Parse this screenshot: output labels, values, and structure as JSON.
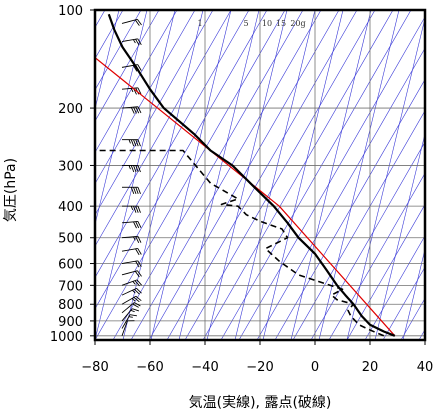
{
  "chart_data": {
    "type": "line",
    "xlabel": "気温(実線), 露点(破線)",
    "ylabel": "気圧(hPa)",
    "xlim": [
      -80,
      40
    ],
    "ylim": [
      1030,
      100
    ],
    "y_scale": "log",
    "x_ticks": [
      -80,
      -60,
      -40,
      -20,
      0,
      20,
      40
    ],
    "x_tick_labels": [
      "−80",
      "−60",
      "−40",
      "−20",
      "0",
      "20",
      "40"
    ],
    "y_ticks": [
      100,
      200,
      300,
      400,
      500,
      600,
      700,
      800,
      900,
      1000
    ],
    "y_tick_labels": [
      "100",
      "200",
      "300",
      "400",
      "500",
      "600",
      "700",
      "800",
      "900",
      "1000"
    ],
    "mixing_ratio_labels": [
      "1",
      "5",
      "10",
      "15",
      "20g"
    ],
    "grid": true,
    "colors": {
      "temperature": "#000000",
      "dewpoint": "#000000",
      "reference": "#e00000",
      "skew_lines": "#3a3ad8",
      "grid": "#707070",
      "wind_barbs": "#000000"
    },
    "series": [
      {
        "line_style": "solid",
        "points": [
          {
            "t": 29,
            "p": 1000
          },
          {
            "t": 25,
            "p": 970
          },
          {
            "t": 20,
            "p": 925
          },
          {
            "t": 17,
            "p": 870
          },
          {
            "t": 14,
            "p": 800
          },
          {
            "t": 11,
            "p": 750
          },
          {
            "t": 8,
            "p": 700
          },
          {
            "t": 4,
            "p": 625
          },
          {
            "t": 0,
            "p": 560
          },
          {
            "t": -6,
            "p": 500
          },
          {
            "t": -10,
            "p": 450
          },
          {
            "t": -15,
            "p": 400
          },
          {
            "t": -22,
            "p": 350
          },
          {
            "t": -30,
            "p": 300
          },
          {
            "t": -38,
            "p": 270
          },
          {
            "t": -44,
            "p": 240
          },
          {
            "t": -55,
            "p": 200
          },
          {
            "t": -60,
            "p": 175
          },
          {
            "t": -65,
            "p": 150
          },
          {
            "t": -70,
            "p": 130
          },
          {
            "t": -73,
            "p": 115
          },
          {
            "t": -75,
            "p": 103
          }
        ]
      },
      {
        "line_style": "dashed",
        "points": [
          {
            "t": 25,
            "p": 1000
          },
          {
            "t": 20,
            "p": 960
          },
          {
            "t": 16,
            "p": 925
          },
          {
            "t": 13,
            "p": 870
          },
          {
            "t": 12,
            "p": 835
          },
          {
            "t": 14,
            "p": 800
          },
          {
            "t": 8,
            "p": 775
          },
          {
            "t": 6,
            "p": 750
          },
          {
            "t": 10,
            "p": 720
          },
          {
            "t": -6,
            "p": 650
          },
          {
            "t": -13,
            "p": 590
          },
          {
            "t": -18,
            "p": 540
          },
          {
            "t": -10,
            "p": 500
          },
          {
            "t": -12,
            "p": 470
          },
          {
            "t": -20,
            "p": 445
          },
          {
            "t": -25,
            "p": 425
          },
          {
            "t": -28,
            "p": 400
          },
          {
            "t": -34,
            "p": 395
          },
          {
            "t": -28,
            "p": 380
          },
          {
            "t": -38,
            "p": 340
          },
          {
            "t": -48,
            "p": 270
          },
          {
            "t": -62,
            "p": 270
          },
          {
            "t": -80,
            "p": 270
          }
        ]
      },
      {
        "line_style": "solid",
        "points": [
          {
            "t": 29,
            "p": 1000
          },
          {
            "t": -13,
            "p": 400
          },
          {
            "t": -80,
            "p": 140
          }
        ]
      }
    ],
    "wind_profile": [
      {
        "p": 1000,
        "speed_kt": 10,
        "dir_deg": 200
      },
      {
        "p": 950,
        "speed_kt": 15,
        "dir_deg": 210
      },
      {
        "p": 900,
        "speed_kt": 15,
        "dir_deg": 220
      },
      {
        "p": 850,
        "speed_kt": 20,
        "dir_deg": 230
      },
      {
        "p": 800,
        "speed_kt": 25,
        "dir_deg": 240
      },
      {
        "p": 750,
        "speed_kt": 25,
        "dir_deg": 245
      },
      {
        "p": 700,
        "speed_kt": 25,
        "dir_deg": 250
      },
      {
        "p": 650,
        "speed_kt": 20,
        "dir_deg": 255
      },
      {
        "p": 600,
        "speed_kt": 20,
        "dir_deg": 260
      },
      {
        "p": 550,
        "speed_kt": 20,
        "dir_deg": 260
      },
      {
        "p": 500,
        "speed_kt": 25,
        "dir_deg": 265
      },
      {
        "p": 450,
        "speed_kt": 30,
        "dir_deg": 265
      },
      {
        "p": 400,
        "speed_kt": 35,
        "dir_deg": 270
      },
      {
        "p": 350,
        "speed_kt": 40,
        "dir_deg": 270
      },
      {
        "p": 300,
        "speed_kt": 45,
        "dir_deg": 270
      },
      {
        "p": 250,
        "speed_kt": 45,
        "dir_deg": 270
      },
      {
        "p": 200,
        "speed_kt": 40,
        "dir_deg": 265
      },
      {
        "p": 175,
        "speed_kt": 35,
        "dir_deg": 265
      },
      {
        "p": 150,
        "speed_kt": 30,
        "dir_deg": 260
      },
      {
        "p": 125,
        "speed_kt": 25,
        "dir_deg": 260
      },
      {
        "p": 110,
        "speed_kt": 20,
        "dir_deg": 255
      }
    ]
  }
}
